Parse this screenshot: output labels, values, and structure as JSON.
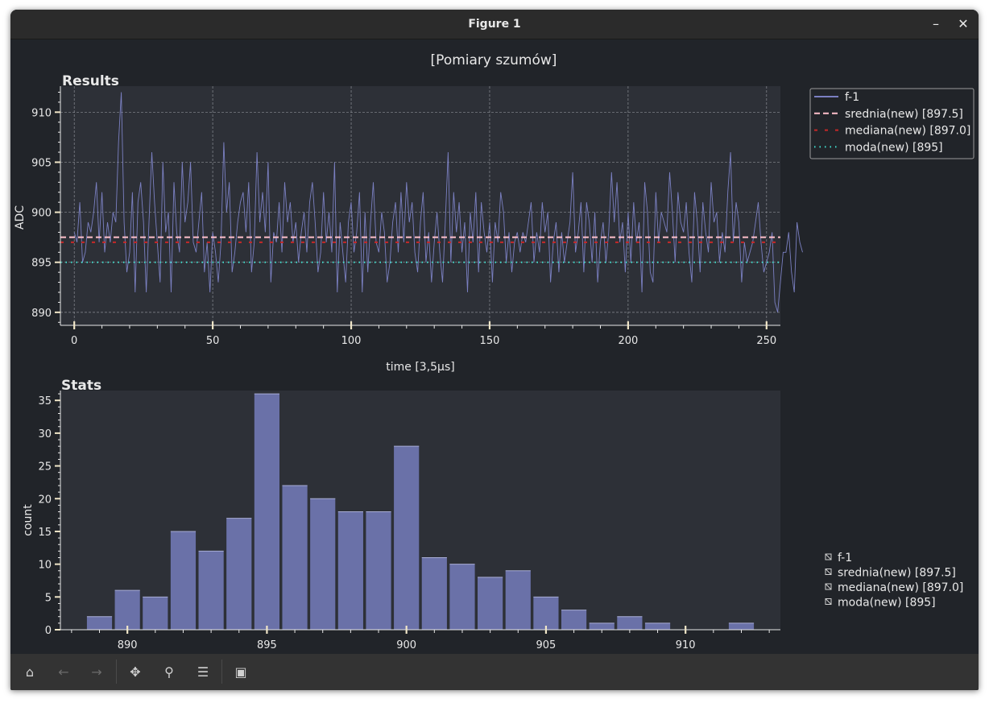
{
  "window": {
    "title": "Figure 1",
    "minimize_label": "–",
    "close_label": "✕"
  },
  "figure": {
    "suptitle": "[Pomiary szumów]"
  },
  "colors": {
    "series": "#7b80c2",
    "bar": "#6a71a8",
    "mean": "#ffc0cb",
    "median": "#c62828",
    "mode": "#40e0d0",
    "axes_bg": "#2d3037",
    "figure_bg": "#212429",
    "text": "#e8e8e8"
  },
  "chart_data": [
    {
      "type": "line",
      "title": "Results",
      "xlabel": "time [3,5µs]",
      "ylabel": "ADC",
      "xlim": [
        -5,
        255
      ],
      "ylim": [
        888.7,
        912.6
      ],
      "xticks": [
        0,
        50,
        100,
        150,
        200,
        250
      ],
      "yticks": [
        890,
        895,
        900,
        905,
        910
      ],
      "grid": true,
      "legend_position": "outside-right-top",
      "series": [
        {
          "name": "f-1",
          "style": "solid",
          "x_start": 0,
          "x_step": 1,
          "y": [
            898,
            897,
            901,
            895,
            896,
            899,
            898,
            900,
            903,
            897,
            902,
            896,
            899,
            897,
            900,
            899,
            907,
            912,
            899,
            894,
            896,
            902,
            892,
            901,
            903,
            899,
            892,
            899,
            906,
            901,
            897,
            893,
            905,
            898,
            900,
            892,
            903,
            898,
            896,
            905,
            899,
            901,
            905,
            897,
            896,
            899,
            902,
            894,
            897,
            892,
            898,
            896,
            893,
            897,
            907,
            900,
            903,
            894,
            896,
            899,
            901,
            902,
            898,
            903,
            894,
            897,
            906,
            899,
            902,
            898,
            905,
            893,
            898,
            897,
            901,
            896,
            903,
            899,
            901,
            897,
            899,
            895,
            898,
            900,
            896,
            901,
            903,
            899,
            894,
            896,
            902,
            897,
            900,
            896,
            905,
            892,
            899,
            896,
            893,
            899,
            901,
            896,
            898,
            902,
            892,
            900,
            894,
            899,
            903,
            897,
            896,
            900,
            898,
            893,
            895,
            899,
            901,
            896,
            902,
            897,
            903,
            899,
            901,
            896,
            894,
            899,
            902,
            895,
            898,
            893,
            897,
            900,
            896,
            893,
            899,
            906,
            895,
            902,
            898,
            901,
            896,
            899,
            892,
            900,
            897,
            902,
            894,
            901,
            898,
            896,
            899,
            893,
            899,
            897,
            902,
            900,
            895,
            898,
            894,
            897,
            898,
            896,
            898,
            897,
            899,
            901,
            895,
            898,
            896,
            901,
            898,
            900,
            893,
            897,
            899,
            894,
            898,
            895,
            897,
            899,
            904,
            896,
            898,
            901,
            894,
            901,
            899,
            895,
            900,
            893,
            897,
            899,
            895,
            898,
            904,
            899,
            903,
            897,
            899,
            894,
            900,
            895,
            901,
            897,
            899,
            892,
            903,
            900,
            894,
            893,
            902,
            897,
            900,
            899,
            898,
            904,
            900,
            895,
            902,
            899,
            898,
            901,
            896,
            893,
            902,
            899,
            894,
            901,
            898,
            896,
            903,
            899,
            900,
            895,
            898,
            896,
            902,
            906,
            897,
            901,
            899,
            893,
            897,
            895,
            896,
            897,
            899,
            901,
            897,
            894,
            895,
            896,
            898,
            891,
            890,
            893,
            896,
            896,
            898,
            894,
            892,
            899,
            897,
            896
          ]
        },
        {
          "name": "srednia(new) [897.5]",
          "style": "dashed",
          "value": 897.5
        },
        {
          "name": "mediana(new) [897.0]",
          "style": "dashed-sparse",
          "value": 897.0
        },
        {
          "name": "moda(new) [895]",
          "style": "dotted",
          "value": 895
        }
      ]
    },
    {
      "type": "bar",
      "title": "Stats",
      "xlabel": "",
      "ylabel": "count",
      "xlim": [
        887.6,
        913.4
      ],
      "ylim": [
        0,
        36.5
      ],
      "xticks": [
        890,
        895,
        900,
        905,
        910
      ],
      "yticks": [
        0,
        5,
        10,
        15,
        20,
        25,
        30,
        35
      ],
      "grid": false,
      "legend_position": "outside-right-bottom",
      "categories": [
        889,
        890,
        891,
        892,
        893,
        894,
        895,
        896,
        897,
        898,
        899,
        900,
        901,
        902,
        903,
        904,
        905,
        906,
        907,
        908,
        909,
        910,
        911,
        912
      ],
      "values": [
        2,
        6,
        5,
        15,
        12,
        17,
        36,
        22,
        20,
        18,
        18,
        28,
        11,
        10,
        8,
        9,
        5,
        3,
        1,
        2,
        1,
        0,
        0,
        1
      ],
      "legend_entries": [
        "f-1",
        "srednia(new) [897.5]",
        "mediana(new) [897.0]",
        "moda(new) [895]"
      ]
    }
  ],
  "toolbar": {
    "buttons": [
      {
        "name": "home",
        "glyph": "⌂",
        "enabled": true
      },
      {
        "name": "back",
        "glyph": "←",
        "enabled": false
      },
      {
        "name": "forward",
        "glyph": "→",
        "enabled": false
      },
      {
        "name": "pan",
        "glyph": "✥",
        "enabled": true
      },
      {
        "name": "zoom",
        "glyph": "⚲",
        "enabled": true
      },
      {
        "name": "configure",
        "glyph": "☰",
        "enabled": true
      },
      {
        "name": "save",
        "glyph": "▣",
        "enabled": true
      }
    ]
  }
}
